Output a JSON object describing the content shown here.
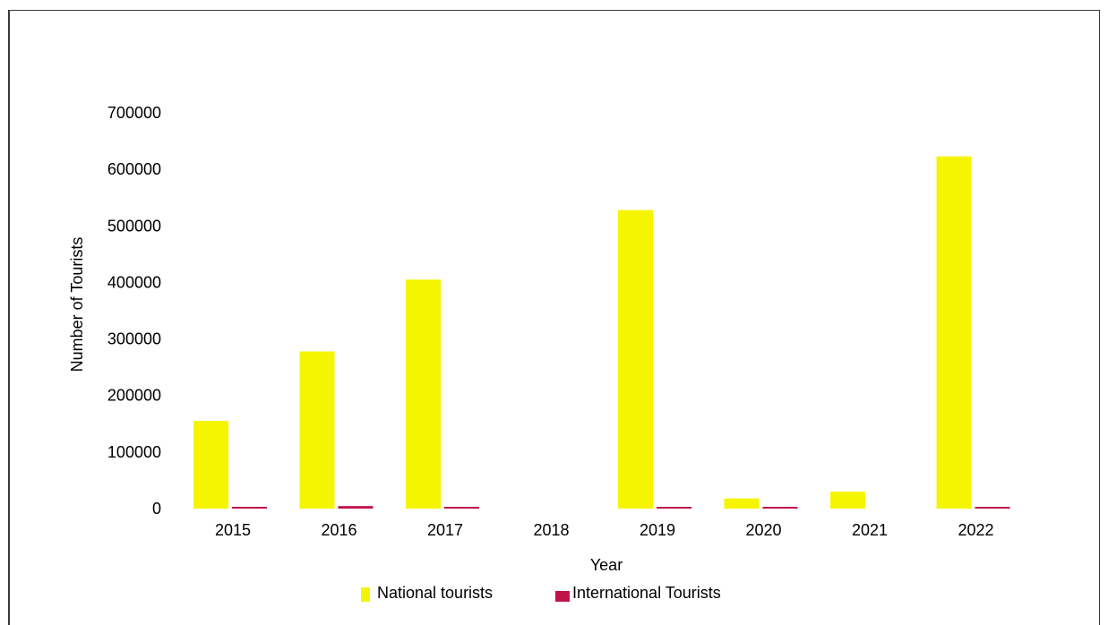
{
  "chart_data": {
    "type": "bar",
    "title": "",
    "xlabel": "Year",
    "ylabel": "Number of Tourists",
    "categories": [
      "2015",
      "2016",
      "2017",
      "2018",
      "2019",
      "2020",
      "2021",
      "2022"
    ],
    "series": [
      {
        "name": "National tourists",
        "color": "#f5f500",
        "values": [
          155000,
          278000,
          405000,
          0,
          528000,
          18000,
          30000,
          623000
        ]
      },
      {
        "name": "International Tourists",
        "color": "#c0134a",
        "values": [
          1500,
          4500,
          2000,
          0,
          1000,
          1000,
          0,
          1000
        ]
      }
    ],
    "yticks": [
      "0",
      "100000",
      "200000",
      "300000",
      "400000",
      "500000",
      "600000",
      "700000"
    ],
    "ylim": [
      0,
      700000
    ],
    "grid": false,
    "legend": "bottom-center"
  }
}
